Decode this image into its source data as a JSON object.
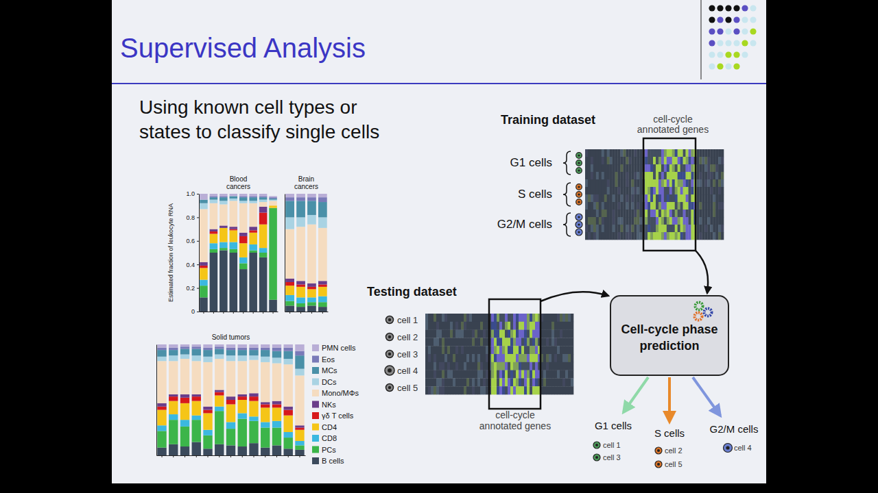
{
  "slide": {
    "title": "Supervised Analysis",
    "subtitle": "Using known cell types or states to classify single cells",
    "training": {
      "title": "Training dataset",
      "genes": "cell-cycle annotated genes",
      "groups": [
        "G1 cells",
        "S cells",
        "G2/M cells"
      ]
    },
    "testing": {
      "title": "Testing dataset",
      "genes": "cell-cycle annotated genes",
      "cells": [
        "cell 1",
        "cell 2",
        "cell 3",
        "cell 4",
        "cell 5"
      ]
    },
    "predictor": "Cell-cycle phase prediction",
    "outputs": [
      {
        "label": "G1 cells",
        "cells": [
          "cell 1",
          "cell 3"
        ]
      },
      {
        "label": "S cells",
        "cells": [
          "cell 2",
          "cell 5"
        ]
      },
      {
        "label": "G2/M cells",
        "cells": [
          "cell 4"
        ]
      }
    ]
  },
  "chart_data": [
    {
      "type": "bar",
      "title": "Blood cancers",
      "y_label": "Estimated fraction of leukocyte RNA",
      "stacked": true,
      "tick_labels": "y",
      "categories": [
        null,
        null,
        null,
        null,
        null,
        null,
        null,
        null
      ],
      "ylim": [
        0,
        1
      ],
      "yticks": [
        0,
        0.2,
        0.4,
        0.6,
        0.8,
        {
          "value": 1,
          "label": "1.0"
        }
      ],
      "series": [
        {
          "name": "B cells",
          "color": "#3b4a5c",
          "values": [
            0.12,
            0.5,
            0.52,
            0.5,
            0.36,
            0.5,
            0.46,
            0.1
          ]
        },
        {
          "name": "PCs",
          "color": "#3cb54a",
          "values": [
            0.1,
            0.03,
            0.02,
            0.03,
            0.05,
            0.02,
            0.04,
            0.78
          ]
        },
        {
          "name": "CD8",
          "color": "#3bb8e0",
          "values": [
            0.05,
            0.05,
            0.05,
            0.06,
            0.05,
            0.05,
            0.04,
            0.0
          ]
        },
        {
          "name": "CD4",
          "color": "#f5c518",
          "values": [
            0.1,
            0.08,
            0.12,
            0.1,
            0.12,
            0.1,
            0.2,
            0.02
          ]
        },
        {
          "name": "γδ T cells",
          "color": "#d7191c",
          "values": [
            0.02,
            0.02,
            0.0,
            0.01,
            0.06,
            0.02,
            0.1,
            0.0
          ]
        },
        {
          "name": "NKs",
          "color": "#6a3d8a",
          "values": [
            0.03,
            0.02,
            0.02,
            0.02,
            0.03,
            0.03,
            0.05,
            0.0
          ]
        },
        {
          "name": "Mono/MΦs",
          "color": "#f5dcc0",
          "values": [
            0.45,
            0.22,
            0.18,
            0.22,
            0.25,
            0.2,
            0.04,
            0.04
          ]
        },
        {
          "name": "DCs",
          "color": "#a9d3e3",
          "values": [
            0.05,
            0.03,
            0.03,
            0.02,
            0.02,
            0.02,
            0.02,
            0.01
          ]
        },
        {
          "name": "MCs",
          "color": "#4a90a8",
          "values": [
            0.03,
            0.02,
            0.03,
            0.02,
            0.03,
            0.03,
            0.02,
            0.01
          ]
        },
        {
          "name": "Eos",
          "color": "#7a7ab8",
          "values": [
            0.0,
            0.01,
            0.01,
            0.0,
            0.01,
            0.01,
            0.01,
            0.01
          ]
        },
        {
          "name": "PMN cells",
          "color": "#b9aed6",
          "values": [
            0.05,
            0.02,
            0.02,
            0.02,
            0.02,
            0.02,
            0.02,
            0.01
          ]
        }
      ]
    },
    {
      "type": "bar",
      "title": "Brain cancers",
      "stacked": true,
      "tick_labels": false,
      "categories": [
        null,
        null,
        null,
        null
      ],
      "ylim": [
        0,
        1
      ],
      "series": [
        {
          "name": "B cells",
          "color": "#3b4a5c",
          "values": [
            0.05,
            0.04,
            0.05,
            0.04
          ]
        },
        {
          "name": "PCs",
          "color": "#3cb54a",
          "values": [
            0.04,
            0.03,
            0.03,
            0.04
          ]
        },
        {
          "name": "CD8",
          "color": "#3bb8e0",
          "values": [
            0.05,
            0.05,
            0.04,
            0.05
          ]
        },
        {
          "name": "CD4",
          "color": "#f5c518",
          "values": [
            0.08,
            0.09,
            0.07,
            0.08
          ]
        },
        {
          "name": "γδ T cells",
          "color": "#d7191c",
          "values": [
            0.03,
            0.02,
            0.02,
            0.02
          ]
        },
        {
          "name": "NKs",
          "color": "#6a3d8a",
          "values": [
            0.03,
            0.03,
            0.03,
            0.03
          ]
        },
        {
          "name": "Mono/MΦs",
          "color": "#f5dcc0",
          "values": [
            0.42,
            0.46,
            0.5,
            0.45
          ]
        },
        {
          "name": "DCs",
          "color": "#a9d3e3",
          "values": [
            0.1,
            0.08,
            0.08,
            0.09
          ]
        },
        {
          "name": "MCs",
          "color": "#4a90a8",
          "values": [
            0.14,
            0.14,
            0.12,
            0.13
          ]
        },
        {
          "name": "Eos",
          "color": "#7a7ab8",
          "values": [
            0.03,
            0.03,
            0.03,
            0.04
          ]
        },
        {
          "name": "PMN cells",
          "color": "#b9aed6",
          "values": [
            0.03,
            0.03,
            0.03,
            0.03
          ]
        }
      ]
    },
    {
      "type": "bar",
      "title": "Solid tumors",
      "stacked": true,
      "tick_labels": false,
      "legend": "right",
      "categories": [
        null,
        null,
        null,
        null,
        null,
        null,
        null,
        null,
        null,
        null,
        null,
        null,
        null
      ],
      "ylim": [
        0,
        1
      ],
      "series": [
        {
          "name": "B cells",
          "color": "#3b4a5c",
          "values": [
            0.07,
            0.1,
            0.08,
            0.12,
            0.06,
            0.1,
            0.09,
            0.08,
            0.11,
            0.07,
            0.09,
            0.06,
            0.05
          ]
        },
        {
          "name": "PCs",
          "color": "#3cb54a",
          "values": [
            0.15,
            0.22,
            0.18,
            0.2,
            0.12,
            0.3,
            0.15,
            0.25,
            0.2,
            0.18,
            0.16,
            0.1,
            0.04
          ]
        },
        {
          "name": "CD8",
          "color": "#3bb8e0",
          "values": [
            0.05,
            0.05,
            0.06,
            0.04,
            0.05,
            0.04,
            0.06,
            0.05,
            0.04,
            0.05,
            0.06,
            0.05,
            0.04
          ]
        },
        {
          "name": "CD4",
          "color": "#f5c518",
          "values": [
            0.14,
            0.12,
            0.15,
            0.13,
            0.15,
            0.1,
            0.16,
            0.12,
            0.14,
            0.13,
            0.12,
            0.15,
            0.1
          ]
        },
        {
          "name": "γδ T cells",
          "color": "#d7191c",
          "values": [
            0.03,
            0.04,
            0.05,
            0.04,
            0.03,
            0.03,
            0.04,
            0.03,
            0.04,
            0.03,
            0.03,
            0.05,
            0.02
          ]
        },
        {
          "name": "NKs",
          "color": "#6a3d8a",
          "values": [
            0.03,
            0.02,
            0.03,
            0.02,
            0.03,
            0.02,
            0.03,
            0.02,
            0.03,
            0.02,
            0.03,
            0.03,
            0.02
          ]
        },
        {
          "name": "Mono/MΦs",
          "color": "#f5dcc0",
          "values": [
            0.38,
            0.3,
            0.32,
            0.3,
            0.4,
            0.28,
            0.32,
            0.3,
            0.3,
            0.36,
            0.34,
            0.38,
            0.45
          ]
        },
        {
          "name": "DCs",
          "color": "#a9d3e3",
          "values": [
            0.04,
            0.05,
            0.04,
            0.05,
            0.05,
            0.04,
            0.05,
            0.05,
            0.04,
            0.05,
            0.05,
            0.05,
            0.06
          ]
        },
        {
          "name": "MCs",
          "color": "#4a90a8",
          "values": [
            0.06,
            0.05,
            0.05,
            0.06,
            0.06,
            0.05,
            0.05,
            0.05,
            0.05,
            0.06,
            0.06,
            0.07,
            0.12
          ]
        },
        {
          "name": "Eos",
          "color": "#7a7ab8",
          "values": [
            0.02,
            0.02,
            0.02,
            0.02,
            0.02,
            0.02,
            0.02,
            0.02,
            0.02,
            0.02,
            0.03,
            0.03,
            0.04
          ]
        },
        {
          "name": "PMN cells",
          "color": "#b9aed6",
          "values": [
            0.03,
            0.03,
            0.02,
            0.02,
            0.03,
            0.02,
            0.03,
            0.03,
            0.03,
            0.03,
            0.03,
            0.03,
            0.06
          ]
        }
      ]
    }
  ]
}
